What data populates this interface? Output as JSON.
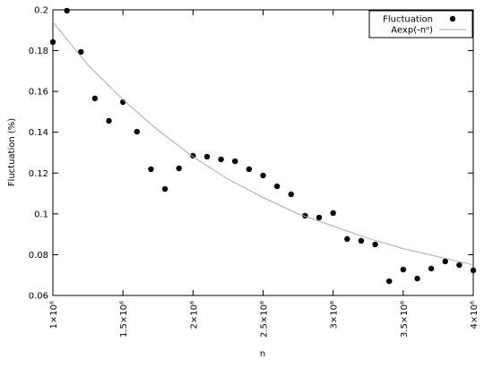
{
  "chart_data": {
    "type": "scatter",
    "xlabel": "n",
    "ylabel": "Fluctuation (%)",
    "xlim": [
      1000000,
      4000000
    ],
    "xticks": [
      {
        "value": 1000000,
        "label": "1×10⁶"
      },
      {
        "value": 1500000,
        "label": "1.5×10⁶"
      },
      {
        "value": 2000000,
        "label": "2×10⁶"
      },
      {
        "value": 2500000,
        "label": "2.5×10⁶"
      },
      {
        "value": 3000000,
        "label": "3×10⁶"
      },
      {
        "value": 3500000,
        "label": "3.5×10⁶"
      },
      {
        "value": 4000000,
        "label": "4×10⁶"
      }
    ],
    "ylim": [
      0.06,
      0.2
    ],
    "yticks": [
      0.06,
      0.08,
      0.1,
      0.12,
      0.14,
      0.16,
      0.18,
      0.2
    ],
    "legend": "top-right",
    "series": [
      {
        "name": "Fluctuation",
        "mode": "markers",
        "color": "#000000",
        "x": [
          1000000,
          1100000,
          1200000,
          1300000,
          1400000,
          1500000,
          1600000,
          1700000,
          1800000,
          1900000,
          2000000,
          2100000,
          2200000,
          2300000,
          2400000,
          2500000,
          2600000,
          2700000,
          2800000,
          2900000,
          3000000,
          3100000,
          3200000,
          3300000,
          3400000,
          3500000,
          3600000,
          3700000,
          3800000,
          3900000,
          4000000
        ],
        "values": [
          0.1842,
          0.1996,
          0.1794,
          0.1566,
          0.1456,
          0.1548,
          0.1403,
          0.1219,
          0.1122,
          0.1223,
          0.1285,
          0.128,
          0.1267,
          0.1258,
          0.1219,
          0.1188,
          0.1135,
          0.1096,
          0.0991,
          0.0982,
          0.1004,
          0.0877,
          0.0868,
          0.085,
          0.067,
          0.0727,
          0.0683,
          0.0732,
          0.0767,
          0.0749,
          0.0723
        ]
      },
      {
        "name": "Aexp(-nᵅ)",
        "mode": "line",
        "color": "#aaaaaa",
        "x": [
          1000000,
          1250000,
          1500000,
          1750000,
          2000000,
          2250000,
          2500000,
          2750000,
          3000000,
          3250000,
          3500000,
          3750000,
          4000000
        ],
        "values": [
          0.194,
          0.173,
          0.156,
          0.141,
          0.128,
          0.117,
          0.108,
          0.1,
          0.094,
          0.088,
          0.083,
          0.079,
          0.075
        ]
      }
    ]
  }
}
